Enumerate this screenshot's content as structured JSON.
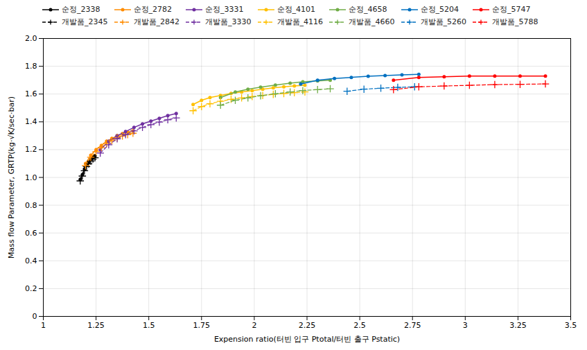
{
  "chart_data": {
    "type": "line",
    "xlabel": "Expension ratio(터빈 입구 Ptotal/터빈 출구 Pstatic)",
    "ylabel": "Mass flow Parameter, GRTP(kg·√K/sec·bar)",
    "xlim": [
      1.0,
      3.5
    ],
    "ylim": [
      0,
      2.0
    ],
    "xticks": [
      1,
      1.25,
      1.5,
      1.75,
      2,
      2.25,
      2.5,
      2.75,
      3,
      3.25,
      3.5
    ],
    "yticks": [
      0,
      0.2,
      0.4,
      0.6,
      0.8,
      {
        "value": 1,
        "label": "1.0"
      },
      1.2,
      1.4,
      1.6,
      1.8,
      {
        "value": 2,
        "label": "2.0"
      }
    ],
    "grid": true,
    "legend": "upper left",
    "series": [
      {
        "name": "순정_2338",
        "color": "#000000",
        "line_style": "solid",
        "marker": "circle",
        "x": [
          1.175,
          1.185,
          1.195,
          1.205,
          1.215,
          1.225,
          1.235,
          1.245
        ],
        "values": [
          0.985,
          1.02,
          1.06,
          1.09,
          1.11,
          1.13,
          1.145,
          1.155
        ]
      },
      {
        "name": "순정_2782",
        "color": "#FF8C00",
        "line_style": "solid",
        "marker": "circle",
        "x": [
          1.2,
          1.225,
          1.25,
          1.275,
          1.3,
          1.325,
          1.35,
          1.375,
          1.4,
          1.425
        ],
        "values": [
          1.1,
          1.16,
          1.2,
          1.23,
          1.26,
          1.28,
          1.3,
          1.315,
          1.325,
          1.335
        ]
      },
      {
        "name": "순정_3331",
        "color": "#7030A0",
        "line_style": "solid",
        "marker": "circle",
        "x": [
          1.27,
          1.31,
          1.35,
          1.39,
          1.43,
          1.47,
          1.51,
          1.55,
          1.59,
          1.63
        ],
        "values": [
          1.2,
          1.26,
          1.3,
          1.33,
          1.36,
          1.385,
          1.405,
          1.425,
          1.445,
          1.46
        ]
      },
      {
        "name": "순정_4101",
        "color": "#FFC000",
        "line_style": "solid",
        "marker": "circle",
        "x": [
          1.71,
          1.75,
          1.79,
          1.84,
          1.89,
          1.94,
          1.99,
          2.04,
          2.09,
          2.14,
          2.19,
          2.24
        ],
        "values": [
          1.525,
          1.555,
          1.575,
          1.59,
          1.605,
          1.615,
          1.625,
          1.635,
          1.645,
          1.652,
          1.658,
          1.663
        ]
      },
      {
        "name": "순정_4658",
        "color": "#70AD47",
        "line_style": "solid",
        "marker": "circle",
        "x": [
          1.84,
          1.91,
          1.97,
          2.03,
          2.1,
          2.17,
          2.23,
          2.3,
          2.36
        ],
        "values": [
          1.575,
          1.615,
          1.635,
          1.65,
          1.665,
          1.678,
          1.688,
          1.695,
          1.7
        ]
      },
      {
        "name": "순정_5204",
        "color": "#0070C0",
        "line_style": "solid",
        "marker": "circle",
        "x": [
          2.22,
          2.3,
          2.38,
          2.46,
          2.54,
          2.62,
          2.7,
          2.78
        ],
        "values": [
          1.672,
          1.7,
          1.712,
          1.72,
          1.728,
          1.733,
          1.738,
          1.742
        ]
      },
      {
        "name": "순정_5747",
        "color": "#FF0000",
        "line_style": "solid",
        "marker": "circle",
        "x": [
          2.66,
          2.78,
          2.9,
          3.02,
          3.14,
          3.26,
          3.38
        ],
        "values": [
          1.7,
          1.72,
          1.725,
          1.73,
          1.73,
          1.73,
          1.73
        ]
      },
      {
        "name": "개발품_2345",
        "color": "#000000",
        "line_style": "dashed",
        "marker": "plus",
        "x": [
          1.175,
          1.185,
          1.195,
          1.205,
          1.215,
          1.225,
          1.235,
          1.245
        ],
        "values": [
          0.975,
          1.01,
          1.048,
          1.078,
          1.098,
          1.118,
          1.132,
          1.142
        ]
      },
      {
        "name": "개발품_2842",
        "color": "#FF8C00",
        "line_style": "dashed",
        "marker": "plus",
        "x": [
          1.2,
          1.225,
          1.25,
          1.275,
          1.3,
          1.325,
          1.35,
          1.375,
          1.4,
          1.425
        ],
        "values": [
          1.085,
          1.145,
          1.185,
          1.215,
          1.245,
          1.265,
          1.285,
          1.298,
          1.308,
          1.318
        ]
      },
      {
        "name": "개발품_3330",
        "color": "#7030A0",
        "line_style": "dashed",
        "marker": "plus",
        "x": [
          1.27,
          1.31,
          1.35,
          1.39,
          1.43,
          1.47,
          1.51,
          1.55,
          1.59,
          1.63
        ],
        "values": [
          1.175,
          1.235,
          1.278,
          1.308,
          1.335,
          1.36,
          1.38,
          1.398,
          1.415,
          1.428
        ]
      },
      {
        "name": "개발품_4116",
        "color": "#FFC000",
        "line_style": "dashed",
        "marker": "plus",
        "x": [
          1.71,
          1.75,
          1.79,
          1.84,
          1.89,
          1.94,
          1.99,
          2.04,
          2.09,
          2.14,
          2.19,
          2.24
        ],
        "values": [
          1.48,
          1.51,
          1.53,
          1.548,
          1.562,
          1.572,
          1.582,
          1.59,
          1.598,
          1.604,
          1.61,
          1.615
        ]
      },
      {
        "name": "개발품_4660",
        "color": "#70AD47",
        "line_style": "dashed",
        "marker": "plus",
        "x": [
          1.84,
          1.91,
          1.97,
          2.03,
          2.1,
          2.17,
          2.23,
          2.3,
          2.36
        ],
        "values": [
          1.52,
          1.555,
          1.572,
          1.588,
          1.602,
          1.615,
          1.625,
          1.632,
          1.638
        ]
      },
      {
        "name": "개발품_5260",
        "color": "#0070C0",
        "line_style": "dashed",
        "marker": "plus",
        "x": [
          2.44,
          2.52,
          2.6,
          2.68,
          2.76
        ],
        "values": [
          1.62,
          1.635,
          1.642,
          1.648,
          1.652
        ]
      },
      {
        "name": "개발품_5788",
        "color": "#FF0000",
        "line_style": "dashed",
        "marker": "plus",
        "x": [
          2.66,
          2.78,
          2.9,
          3.02,
          3.14,
          3.26,
          3.38
        ],
        "values": [
          1.632,
          1.652,
          1.658,
          1.663,
          1.668,
          1.67,
          1.673
        ]
      }
    ]
  }
}
